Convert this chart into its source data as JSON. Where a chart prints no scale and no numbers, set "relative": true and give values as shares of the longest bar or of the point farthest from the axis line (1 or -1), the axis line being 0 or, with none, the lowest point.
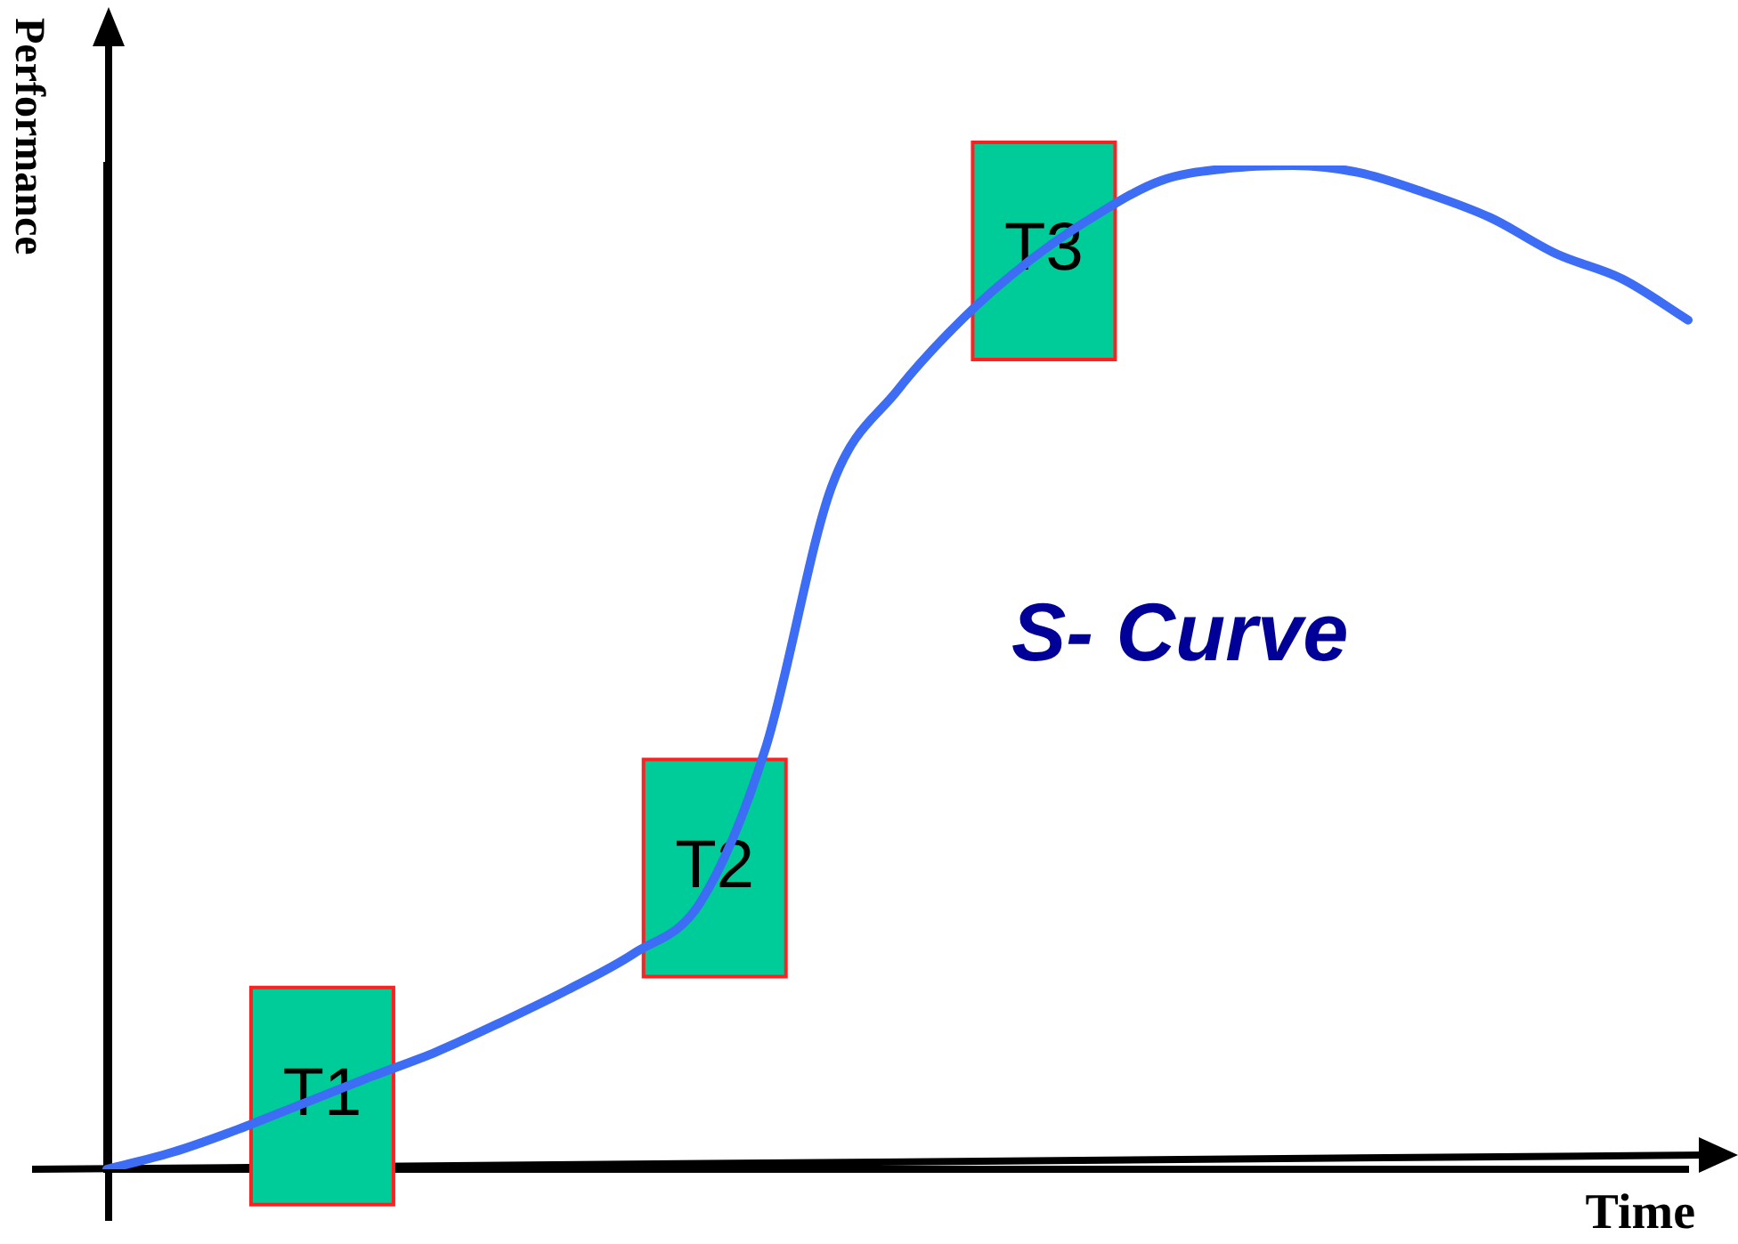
{
  "chart_data": {
    "type": "line",
    "relative": true,
    "xlabel": "Time",
    "ylabel": "Performance",
    "categories": [
      null,
      null,
      null,
      null,
      null,
      null,
      null,
      null,
      null,
      null,
      null,
      null,
      null,
      null,
      null,
      null,
      null,
      null,
      null,
      null,
      null,
      null,
      null,
      null,
      null
    ],
    "series": [
      {
        "color": "#3d6cf5",
        "values": [
          0,
          0.017,
          0.04,
          0.066,
          0.092,
          0.117,
          0.147,
          0.179,
          0.215,
          0.265,
          0.42,
          0.68,
          0.776,
          0.848,
          0.905,
          0.95,
          0.985,
          0.997,
          1,
          0.993,
          0.973,
          0.948,
          0.912,
          0.887,
          0.846
        ]
      }
    ],
    "marker": "none",
    "line_style": "solid",
    "legend": false,
    "annotations": [
      {
        "text": "T1",
        "y": 0.073
      },
      {
        "text": "T2",
        "y": 0.3
      },
      {
        "text": "T3",
        "y": 0.915
      },
      "S- Curve"
    ]
  }
}
